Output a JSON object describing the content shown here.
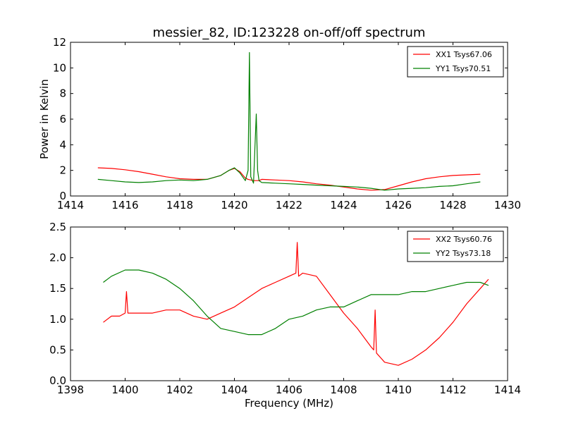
{
  "figure": {
    "title": "messier_82, ID:123228 on-off/off spectrum",
    "shared_xlabel": "Frequency (MHz)"
  },
  "chart_data": [
    {
      "type": "line",
      "title": "messier_82, ID:123228 on-off/off spectrum",
      "xlabel": "",
      "ylabel": "Power in Kelvin",
      "xlim": [
        1414,
        1430
      ],
      "ylim": [
        0,
        12
      ],
      "xticks": [
        "1414",
        "1416",
        "1418",
        "1420",
        "1422",
        "1424",
        "1426",
        "1428",
        "1430"
      ],
      "yticks": [
        "0",
        "2",
        "4",
        "6",
        "8",
        "10",
        "12"
      ],
      "grid": false,
      "legend_position": "top-right",
      "series": [
        {
          "name": "XX1 Tsys67.06",
          "color": "#ff0000",
          "x": [
            1415.0,
            1415.5,
            1416.0,
            1416.5,
            1417.0,
            1417.5,
            1418.0,
            1418.5,
            1419.0,
            1419.5,
            1419.8,
            1420.0,
            1420.2,
            1420.4,
            1420.5,
            1420.6,
            1420.7,
            1420.8,
            1420.9,
            1421.0,
            1421.5,
            1422.0,
            1422.5,
            1423.0,
            1423.5,
            1424.0,
            1424.5,
            1425.0,
            1425.5,
            1426.0,
            1426.5,
            1427.0,
            1427.5,
            1428.0,
            1428.5,
            1429.0
          ],
          "y": [
            2.2,
            2.15,
            2.05,
            1.9,
            1.7,
            1.5,
            1.35,
            1.3,
            1.3,
            1.6,
            2.0,
            2.15,
            1.9,
            1.4,
            1.3,
            1.25,
            1.2,
            1.2,
            1.2,
            1.3,
            1.25,
            1.2,
            1.1,
            0.95,
            0.85,
            0.7,
            0.55,
            0.45,
            0.5,
            0.8,
            1.1,
            1.35,
            1.5,
            1.6,
            1.65,
            1.7
          ]
        },
        {
          "name": "YY1 Tsys70.51",
          "color": "#008000",
          "x": [
            1415.0,
            1415.5,
            1416.0,
            1416.5,
            1417.0,
            1417.5,
            1418.0,
            1418.5,
            1419.0,
            1419.5,
            1419.8,
            1420.0,
            1420.2,
            1420.4,
            1420.5,
            1420.55,
            1420.6,
            1420.7,
            1420.8,
            1420.85,
            1420.9,
            1421.0,
            1421.5,
            1422.0,
            1422.5,
            1423.0,
            1423.5,
            1424.0,
            1424.5,
            1425.0,
            1425.5,
            1426.0,
            1426.5,
            1427.0,
            1427.5,
            1428.0,
            1428.5,
            1429.0
          ],
          "y": [
            1.3,
            1.2,
            1.1,
            1.05,
            1.1,
            1.2,
            1.25,
            1.2,
            1.3,
            1.6,
            2.0,
            2.2,
            1.8,
            1.2,
            2.0,
            11.2,
            1.5,
            1.0,
            6.4,
            2.0,
            1.2,
            1.05,
            1.0,
            0.95,
            0.9,
            0.85,
            0.8,
            0.75,
            0.7,
            0.6,
            0.45,
            0.55,
            0.6,
            0.65,
            0.75,
            0.8,
            0.95,
            1.1
          ]
        }
      ]
    },
    {
      "type": "line",
      "title": "",
      "xlabel": "Frequency (MHz)",
      "ylabel": "",
      "xlim": [
        1398,
        1414
      ],
      "ylim": [
        0.0,
        2.5
      ],
      "xticks": [
        "1398",
        "1400",
        "1402",
        "1404",
        "1406",
        "1408",
        "1410",
        "1412",
        "1414"
      ],
      "yticks": [
        "0.0",
        "0.5",
        "1.0",
        "1.5",
        "2.0",
        "2.5"
      ],
      "grid": false,
      "legend_position": "top-right",
      "series": [
        {
          "name": "XX2 Tsys60.76",
          "color": "#ff0000",
          "x": [
            1399.2,
            1399.5,
            1399.8,
            1400.0,
            1400.05,
            1400.1,
            1400.5,
            1401.0,
            1401.5,
            1402.0,
            1402.5,
            1403.0,
            1403.5,
            1404.0,
            1404.5,
            1405.0,
            1405.5,
            1406.0,
            1406.25,
            1406.3,
            1406.35,
            1406.5,
            1407.0,
            1407.5,
            1408.0,
            1408.5,
            1409.0,
            1409.1,
            1409.15,
            1409.2,
            1409.5,
            1410.0,
            1410.5,
            1411.0,
            1411.5,
            1412.0,
            1412.5,
            1413.0,
            1413.3
          ],
          "y": [
            0.95,
            1.05,
            1.05,
            1.1,
            1.45,
            1.1,
            1.1,
            1.1,
            1.15,
            1.15,
            1.05,
            1.0,
            1.1,
            1.2,
            1.35,
            1.5,
            1.6,
            1.7,
            1.75,
            2.25,
            1.7,
            1.75,
            1.7,
            1.4,
            1.1,
            0.85,
            0.55,
            0.5,
            1.15,
            0.45,
            0.3,
            0.25,
            0.35,
            0.5,
            0.7,
            0.95,
            1.25,
            1.5,
            1.65
          ]
        },
        {
          "name": "YY2 Tsys73.18",
          "color": "#008000",
          "x": [
            1399.2,
            1399.5,
            1400.0,
            1400.5,
            1401.0,
            1401.5,
            1402.0,
            1402.5,
            1403.0,
            1403.5,
            1404.0,
            1404.5,
            1405.0,
            1405.5,
            1406.0,
            1406.5,
            1407.0,
            1407.5,
            1408.0,
            1408.5,
            1409.0,
            1409.5,
            1410.0,
            1410.5,
            1411.0,
            1411.5,
            1412.0,
            1412.5,
            1413.0,
            1413.3
          ],
          "y": [
            1.6,
            1.7,
            1.8,
            1.8,
            1.75,
            1.65,
            1.5,
            1.3,
            1.05,
            0.85,
            0.8,
            0.75,
            0.75,
            0.85,
            1.0,
            1.05,
            1.15,
            1.2,
            1.2,
            1.3,
            1.4,
            1.4,
            1.4,
            1.45,
            1.45,
            1.5,
            1.55,
            1.6,
            1.6,
            1.55
          ]
        }
      ]
    }
  ]
}
